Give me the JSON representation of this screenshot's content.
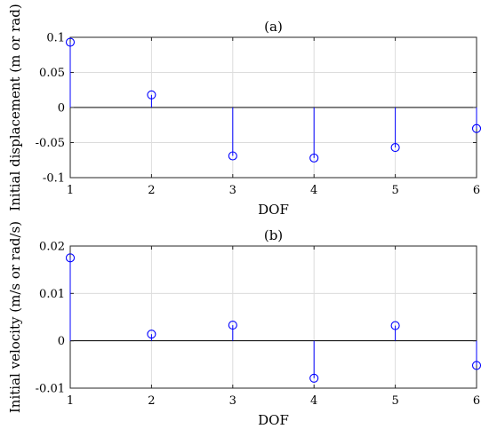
{
  "chart_data": [
    {
      "type": "stem",
      "title": "(a)",
      "xlabel": "DOF",
      "ylabel": "Initial displacement (m or rad)",
      "x": [
        1,
        2,
        3,
        4,
        5,
        6
      ],
      "values": [
        0.093,
        0.018,
        -0.069,
        -0.072,
        -0.057,
        -0.03
      ],
      "xlim": [
        1,
        6
      ],
      "ylim": [
        -0.1,
        0.1
      ],
      "xticks": [
        "1",
        "2",
        "3",
        "4",
        "5",
        "6"
      ],
      "yticks": [
        {
          "value": 0.1,
          "label": "0.1"
        },
        {
          "value": 0.05,
          "label": "0.05"
        },
        {
          "value": 0,
          "label": "0"
        },
        {
          "value": -0.05,
          "label": "-0.05"
        },
        {
          "value": -0.1,
          "label": "-0.1"
        }
      ],
      "grid": true,
      "color": "#0000ff"
    },
    {
      "type": "stem",
      "title": "(b)",
      "xlabel": "DOF",
      "ylabel": "Initial velocity (m/s or rad/s)",
      "x": [
        1,
        2,
        3,
        4,
        5,
        6
      ],
      "values": [
        0.0175,
        0.0014,
        0.0033,
        -0.0079,
        0.0032,
        -0.0052
      ],
      "xlim": [
        1,
        6
      ],
      "ylim": [
        -0.01,
        0.02
      ],
      "xticks": [
        "1",
        "2",
        "3",
        "4",
        "5",
        "6"
      ],
      "yticks": [
        {
          "value": 0.02,
          "label": "0.02"
        },
        {
          "value": 0.01,
          "label": "0.01"
        },
        {
          "value": 0,
          "label": "0"
        },
        {
          "value": -0.01,
          "label": "-0.01"
        }
      ],
      "grid": true,
      "color": "#0000ff"
    }
  ]
}
